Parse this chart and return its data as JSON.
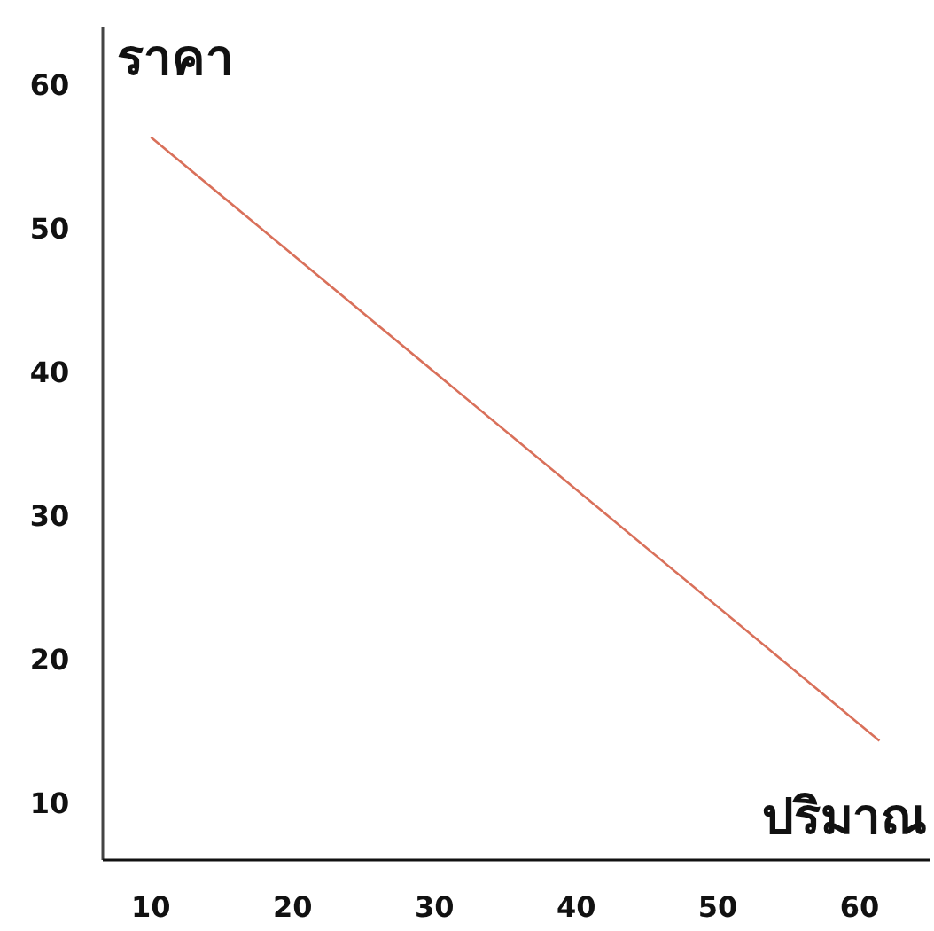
{
  "chart_data": {
    "type": "line",
    "xlabel": "ปริมาณ",
    "ylabel": "ราคา",
    "x": [
      10,
      61.4
    ],
    "series": [
      {
        "color": "#d9705a",
        "values": [
          56.3,
          14.3
        ]
      }
    ],
    "xlim": [
      6.6,
      65
    ],
    "ylim": [
      6,
      64
    ],
    "xticks": [
      10,
      20,
      30,
      40,
      50,
      60
    ],
    "yticks": [
      10,
      20,
      30,
      40,
      50,
      60
    ],
    "grid": false,
    "marker": "none",
    "line_style": "solid"
  }
}
